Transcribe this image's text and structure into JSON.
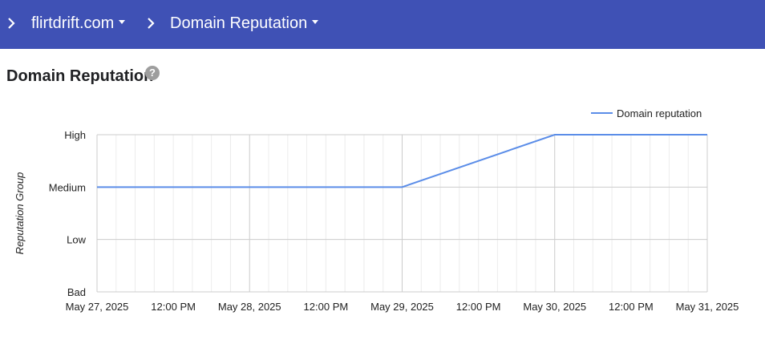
{
  "breadcrumb": {
    "items": [
      {
        "label": "flirtdrift.com"
      },
      {
        "label": "Domain Reputation"
      }
    ]
  },
  "page": {
    "title": "Domain Reputation",
    "help_icon": "help-circle-icon",
    "help_glyph": "?"
  },
  "colors": {
    "header_bg": "#3f51b5",
    "series_line": "#5b8de8"
  },
  "chart_data": {
    "type": "line",
    "title": "",
    "xlabel": "",
    "ylabel": "Reputation Group",
    "y_categories": [
      "Bad",
      "Low",
      "Medium",
      "High"
    ],
    "x_ticks": [
      "May 27, 2025",
      "12:00 PM",
      "May 28, 2025",
      "12:00 PM",
      "May 29, 2025",
      "12:00 PM",
      "May 30, 2025",
      "12:00 PM",
      "May 31, 2025"
    ],
    "xlim": [
      "2025-05-27 00:00",
      "2025-05-31 00:00"
    ],
    "grid": true,
    "legend": "top-right",
    "series": [
      {
        "name": "Domain reputation",
        "color": "#5b8de8",
        "points": [
          {
            "x": "2025-05-27 00:00",
            "y": "Medium"
          },
          {
            "x": "2025-05-28 00:00",
            "y": "Medium"
          },
          {
            "x": "2025-05-29 00:00",
            "y": "Medium"
          },
          {
            "x": "2025-05-30 00:00",
            "y": "High"
          },
          {
            "x": "2025-05-31 00:00",
            "y": "High"
          }
        ]
      }
    ]
  }
}
